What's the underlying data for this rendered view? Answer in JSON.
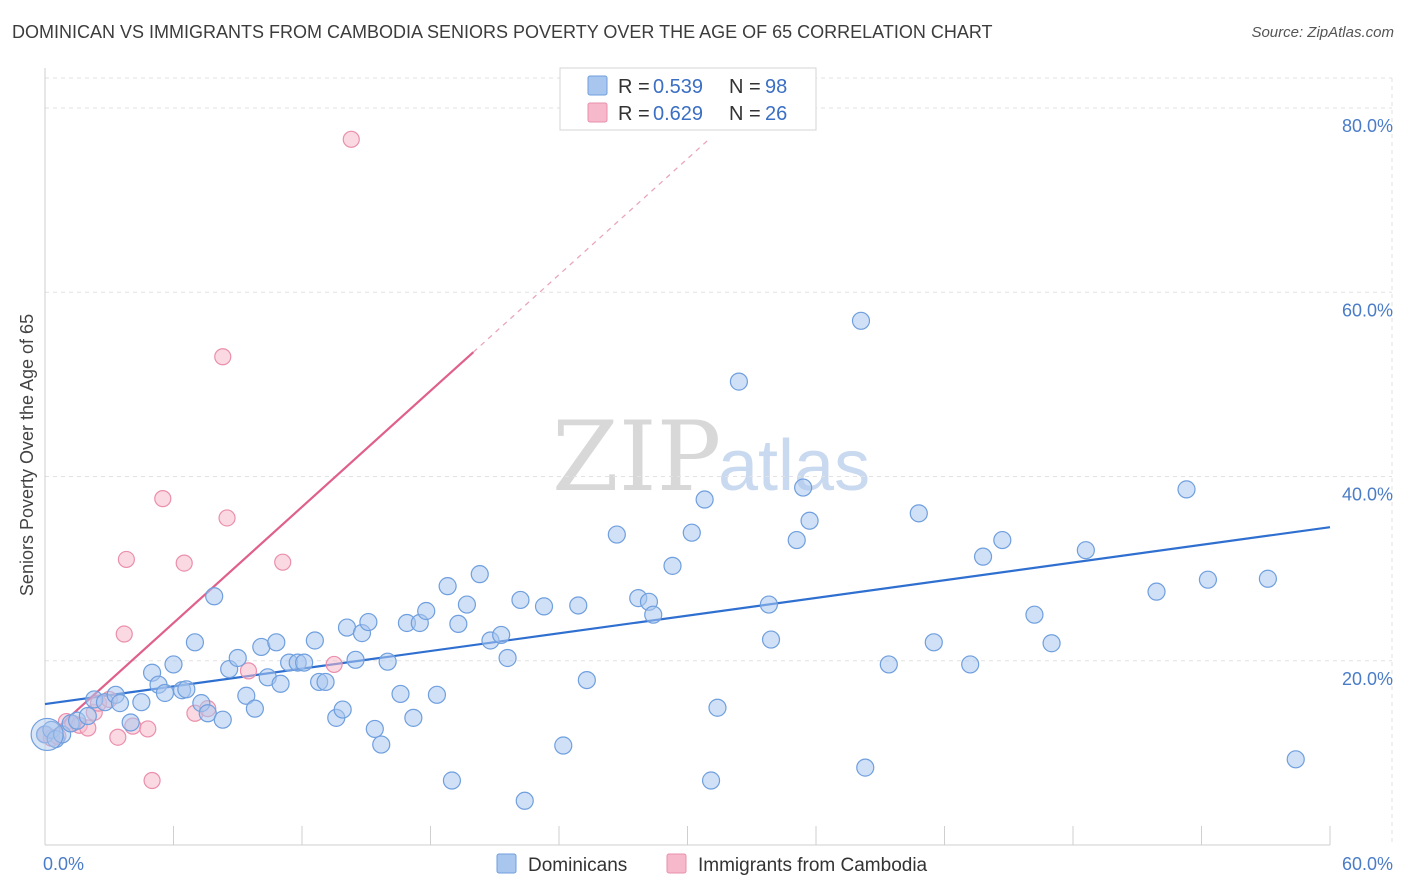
{
  "header": {
    "title": "DOMINICAN VS IMMIGRANTS FROM CAMBODIA SENIORS POVERTY OVER THE AGE OF 65 CORRELATION CHART",
    "source": "Source: ZipAtlas.com"
  },
  "watermark": {
    "zip": "ZIP",
    "atlas": "atlas"
  },
  "colors": {
    "blue_fill": "#a9c6ee",
    "blue_stroke": "#6f9fde",
    "blue_line": "#2f6fd0",
    "pink_fill": "#f6b9cb",
    "pink_stroke": "#ea8fac",
    "pink_line": "#e0608c",
    "grid": "#e2e2e2",
    "axis_text": "#4a7cc7"
  },
  "legend": {
    "rows": [
      {
        "r_label": "R = ",
        "r_value": "0.539",
        "n_label": "N = ",
        "n_value": "98"
      },
      {
        "r_label": "R = ",
        "r_value": "0.629",
        "n_label": "N = ",
        "n_value": "26"
      }
    ]
  },
  "bottom_legend": [
    "Dominicans",
    "Immigrants from Cambodia"
  ],
  "chart_data": {
    "type": "scatter",
    "title": "DOMINICAN VS IMMIGRANTS FROM CAMBODIA SENIORS POVERTY OVER THE AGE OF 65 CORRELATION CHART",
    "xlabel": "",
    "ylabel": "Seniors Poverty Over the Age of 65",
    "xlim": [
      0,
      60
    ],
    "ylim": [
      0,
      80
    ],
    "x_tick_labels": [
      "0.0%",
      "60.0%"
    ],
    "y_ticks": [
      20,
      40,
      60,
      80
    ],
    "y_tick_labels": [
      "20.0%",
      "40.0%",
      "60.0%",
      "80.0%"
    ],
    "grid": true,
    "legend_placement": "top-center",
    "series": [
      {
        "name": "Dominicans",
        "r": 0.539,
        "n": 98,
        "trend": {
          "x": [
            0,
            60
          ],
          "y": [
            15.3,
            34.5
          ]
        },
        "points": [
          [
            0.0,
            12.0
          ],
          [
            0.3,
            12.5
          ],
          [
            0.5,
            11.5
          ],
          [
            0.8,
            12.0
          ],
          [
            1.2,
            13.2
          ],
          [
            1.5,
            13.5
          ],
          [
            2.0,
            14.0
          ],
          [
            2.3,
            15.8
          ],
          [
            2.8,
            15.5
          ],
          [
            3.3,
            16.3
          ],
          [
            3.5,
            15.4
          ],
          [
            4.0,
            13.3
          ],
          [
            4.5,
            15.5
          ],
          [
            5.0,
            18.7
          ],
          [
            5.3,
            17.4
          ],
          [
            5.6,
            16.5
          ],
          [
            6.0,
            19.6
          ],
          [
            6.4,
            16.8
          ],
          [
            6.6,
            16.9
          ],
          [
            7.0,
            22.0
          ],
          [
            7.3,
            15.4
          ],
          [
            7.6,
            14.3
          ],
          [
            7.9,
            27.0
          ],
          [
            8.3,
            13.6
          ],
          [
            8.6,
            19.1
          ],
          [
            9.0,
            20.3
          ],
          [
            9.4,
            16.2
          ],
          [
            9.8,
            14.8
          ],
          [
            10.1,
            21.5
          ],
          [
            10.4,
            18.2
          ],
          [
            10.8,
            22.0
          ],
          [
            11.0,
            17.5
          ],
          [
            11.4,
            19.8
          ],
          [
            11.8,
            19.8
          ],
          [
            12.1,
            19.8
          ],
          [
            12.6,
            22.2
          ],
          [
            12.8,
            17.7
          ],
          [
            13.1,
            17.7
          ],
          [
            13.6,
            13.8
          ],
          [
            13.9,
            14.7
          ],
          [
            14.1,
            23.6
          ],
          [
            14.5,
            20.1
          ],
          [
            14.8,
            23.0
          ],
          [
            15.1,
            24.2
          ],
          [
            15.4,
            12.6
          ],
          [
            15.7,
            10.9
          ],
          [
            16.0,
            19.9
          ],
          [
            16.6,
            16.4
          ],
          [
            16.9,
            24.1
          ],
          [
            17.2,
            13.8
          ],
          [
            17.5,
            24.1
          ],
          [
            17.8,
            25.4
          ],
          [
            18.3,
            16.3
          ],
          [
            18.8,
            28.1
          ],
          [
            19.0,
            7.0
          ],
          [
            19.3,
            24.0
          ],
          [
            19.7,
            26.1
          ],
          [
            20.3,
            29.4
          ],
          [
            20.8,
            22.2
          ],
          [
            21.3,
            22.8
          ],
          [
            21.6,
            20.3
          ],
          [
            22.2,
            26.6
          ],
          [
            22.4,
            4.8
          ],
          [
            23.3,
            25.9
          ],
          [
            24.2,
            10.8
          ],
          [
            24.9,
            26.0
          ],
          [
            25.3,
            17.9
          ],
          [
            26.7,
            33.7
          ],
          [
            27.7,
            26.8
          ],
          [
            28.2,
            26.4
          ],
          [
            28.4,
            25.0
          ],
          [
            29.3,
            30.3
          ],
          [
            30.2,
            33.9
          ],
          [
            30.8,
            37.5
          ],
          [
            31.1,
            7.0
          ],
          [
            31.4,
            14.9
          ],
          [
            32.4,
            50.3
          ],
          [
            33.8,
            26.1
          ],
          [
            33.9,
            22.3
          ],
          [
            35.1,
            33.1
          ],
          [
            35.4,
            38.8
          ],
          [
            35.7,
            35.2
          ],
          [
            38.1,
            56.9
          ],
          [
            38.3,
            8.4
          ],
          [
            39.4,
            19.6
          ],
          [
            40.8,
            36.0
          ],
          [
            41.5,
            22.0
          ],
          [
            43.2,
            19.6
          ],
          [
            43.8,
            31.3
          ],
          [
            44.7,
            33.1
          ],
          [
            46.2,
            25.0
          ],
          [
            47.0,
            21.9
          ],
          [
            48.6,
            32.0
          ],
          [
            51.9,
            27.5
          ],
          [
            53.3,
            38.6
          ],
          [
            54.3,
            28.8
          ],
          [
            57.1,
            28.9
          ],
          [
            58.4,
            9.3
          ]
        ]
      },
      {
        "name": "Immigrants from Cambodia",
        "r": 0.629,
        "n": 26,
        "trend": {
          "x": [
            0,
            20
          ],
          "y": [
            11.5,
            53.5
          ]
        },
        "trend_dashed": {
          "x": [
            20,
            31
          ],
          "y": [
            53.5,
            76.6
          ]
        },
        "points": [
          [
            0.0,
            12.0
          ],
          [
            0.3,
            11.6
          ],
          [
            0.6,
            11.8
          ],
          [
            1.0,
            13.4
          ],
          [
            1.3,
            13.2
          ],
          [
            1.6,
            13.0
          ],
          [
            2.0,
            12.7
          ],
          [
            2.3,
            14.4
          ],
          [
            2.5,
            15.4
          ],
          [
            3.0,
            15.8
          ],
          [
            3.4,
            11.7
          ],
          [
            3.7,
            22.9
          ],
          [
            3.8,
            31.0
          ],
          [
            4.1,
            12.9
          ],
          [
            4.8,
            12.6
          ],
          [
            5.0,
            7.0
          ],
          [
            5.5,
            37.6
          ],
          [
            6.5,
            30.6
          ],
          [
            7.0,
            14.3
          ],
          [
            7.6,
            14.8
          ],
          [
            8.3,
            53.0
          ],
          [
            8.5,
            35.5
          ],
          [
            9.5,
            18.9
          ],
          [
            11.1,
            30.7
          ],
          [
            13.5,
            19.6
          ],
          [
            14.3,
            76.6
          ]
        ]
      }
    ]
  }
}
